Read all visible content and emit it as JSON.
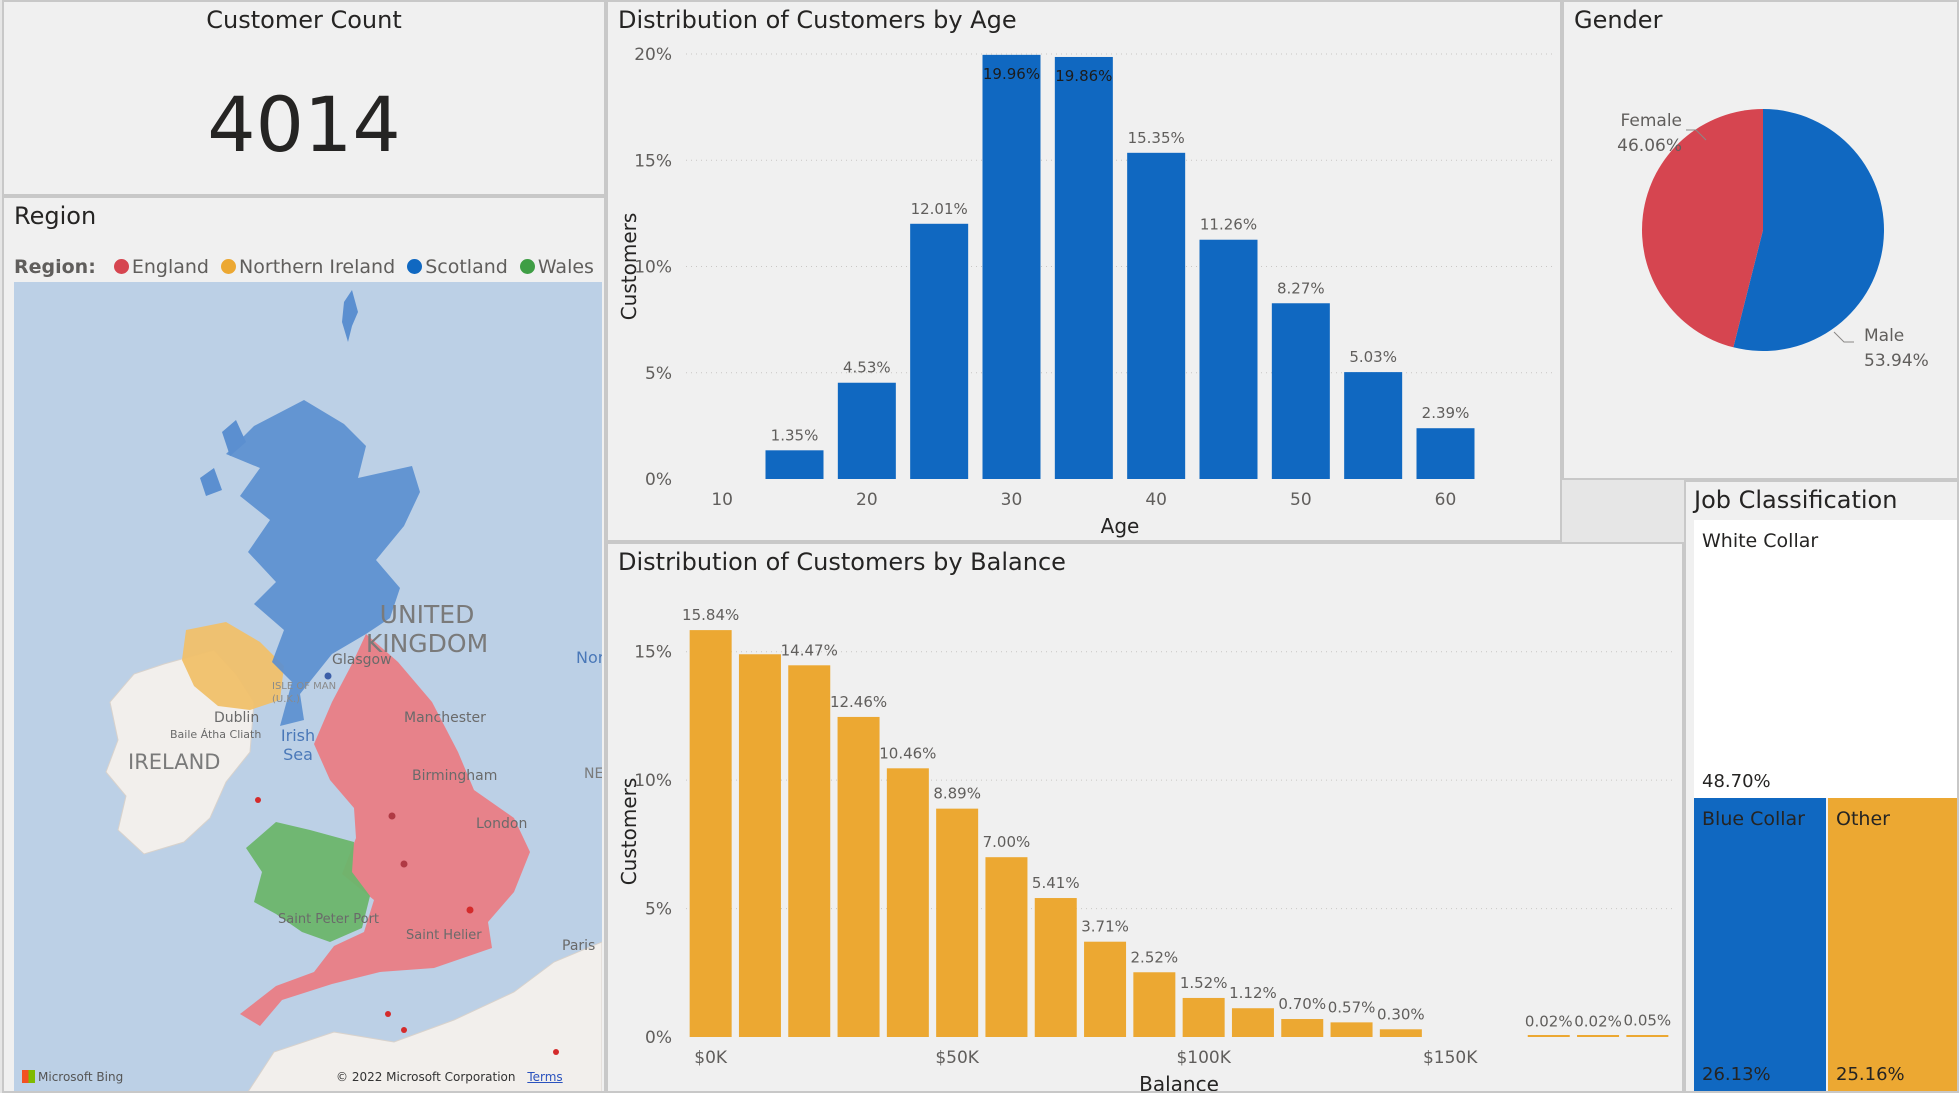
{
  "colors": {
    "blue": "#1068c1",
    "orange": "#eca832",
    "red": "#d64550",
    "green": "#5aa65a",
    "white": "#ffffff"
  },
  "customer_count": {
    "title": "Customer Count",
    "value": "4014"
  },
  "region": {
    "title": "Region",
    "legend_label": "Region:",
    "legend": [
      {
        "name": "England",
        "color": "#d64550"
      },
      {
        "name": "Northern Ireland",
        "color": "#eca832"
      },
      {
        "name": "Scotland",
        "color": "#1068c1"
      },
      {
        "name": "Wales",
        "color": "#3f9e45"
      }
    ],
    "map_labels": {
      "country": "UNITED KINGDOM",
      "ireland": "IRELAND",
      "irish_sea": "Irish Sea",
      "isle_of_man": "ISLE OF MAN (U.K.)",
      "glasgow": "Glasgow",
      "manchester": "Manchester",
      "birmingham": "Birmingham",
      "london": "London",
      "dublin": "Dublin",
      "dublin_irish": "Baile Átha Cliath",
      "saint_peter_port": "Saint Peter Port",
      "saint_helier": "Saint Helier",
      "paris": "Paris",
      "north": "Nor",
      "ne": "NE"
    },
    "attribution": "© 2022 Microsoft Corporation",
    "terms": "Terms",
    "bing": "Microsoft Bing"
  },
  "chart_data": [
    {
      "type": "bar",
      "title": "Distribution of Customers by Age",
      "xlabel": "Age",
      "ylabel": "Customers",
      "x": [
        15,
        20,
        25,
        30,
        35,
        40,
        45,
        50,
        55,
        60
      ],
      "values": [
        1.35,
        4.53,
        12.01,
        19.96,
        19.86,
        15.35,
        11.26,
        8.27,
        5.03,
        2.39
      ],
      "data_labels": [
        "1.35%",
        "4.53%",
        "12.01%",
        "19.96%",
        "19.86%",
        "15.35%",
        "11.26%",
        "8.27%",
        "5.03%",
        "2.39%"
      ],
      "xlim": [
        7.5,
        67.5
      ],
      "ylim": [
        0,
        20
      ],
      "xticks": [
        10,
        20,
        30,
        40,
        50,
        60
      ],
      "xtick_labels": [
        "10",
        "20",
        "30",
        "40",
        "50",
        "60"
      ],
      "yticks": [
        0,
        5,
        10,
        15,
        20
      ],
      "ytick_labels": [
        "0%",
        "5%",
        "10%",
        "15%",
        "20%"
      ],
      "color": "#1068c1",
      "grid": true
    },
    {
      "type": "pie",
      "title": "Gender",
      "slices": [
        {
          "name": "Female",
          "value": 46.06,
          "label": "46.06%",
          "color": "#d64550"
        },
        {
          "name": "Male",
          "value": 53.94,
          "label": "53.94%",
          "color": "#1068c1"
        }
      ]
    },
    {
      "type": "bar",
      "title": "Distribution of Customers by Balance",
      "xlabel": "Balance",
      "ylabel": "Customers",
      "x": [
        0,
        10000,
        20000,
        30000,
        40000,
        50000,
        60000,
        70000,
        80000,
        90000,
        100000,
        110000,
        120000,
        130000,
        140000,
        150000,
        160000,
        170000,
        180000,
        190000
      ],
      "values": [
        15.84,
        14.9,
        14.47,
        12.46,
        10.46,
        8.89,
        7.0,
        5.41,
        3.71,
        2.52,
        1.52,
        1.12,
        0.7,
        0.57,
        0.3,
        0,
        0,
        0.02,
        0.02,
        0.05
      ],
      "data_labels": [
        "15.84%",
        "",
        "14.47%",
        "12.46%",
        "10.46%",
        "8.89%",
        "7.00%",
        "5.41%",
        "3.71%",
        "2.52%",
        "1.52%",
        "1.12%",
        "0.70%",
        "0.57%",
        "0.30%",
        "",
        "",
        "0.02%",
        "0.02%",
        "0.05%"
      ],
      "xlim": [
        -5000,
        195000
      ],
      "ylim": [
        0,
        16
      ],
      "xticks": [
        0,
        50000,
        100000,
        150000
      ],
      "xtick_labels": [
        "$0K",
        "$50K",
        "$100K",
        "$150K"
      ],
      "yticks": [
        0,
        5,
        10,
        15
      ],
      "ytick_labels": [
        "0%",
        "5%",
        "10%",
        "15%"
      ],
      "color": "#eca832",
      "grid": true
    },
    {
      "type": "treemap",
      "title": "Job Classification",
      "items": [
        {
          "name": "White Collar",
          "value": 48.7,
          "label": "48.70%",
          "color": "#ffffff"
        },
        {
          "name": "Blue Collar",
          "value": 26.13,
          "label": "26.13%",
          "color": "#1068c1"
        },
        {
          "name": "Other",
          "value": 25.16,
          "label": "25.16%",
          "color": "#eca832"
        }
      ]
    }
  ]
}
